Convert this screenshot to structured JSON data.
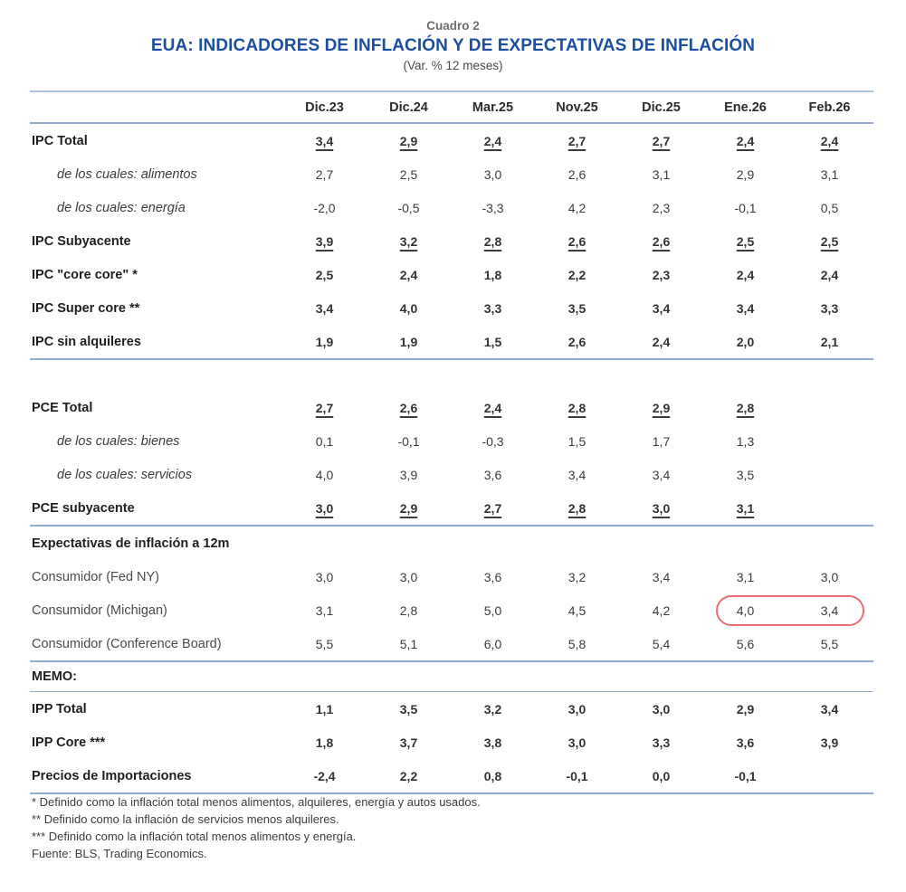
{
  "header": {
    "kicker": "Cuadro 2",
    "title": "EUA: INDICADORES DE INFLACIÓN Y DE EXPECTATIVAS DE INFLACIÓN",
    "subtitle": "(Var. % 12 meses)"
  },
  "table": {
    "columns": [
      "Dic.23",
      "Dic.24",
      "Mar.25",
      "Nov.25",
      "Dic.25",
      "Ene.26",
      "Feb.26"
    ],
    "rows": [
      {
        "label": "IPC Total",
        "style": "bold-underline",
        "values": [
          "3,4",
          "2,9",
          "2,4",
          "2,7",
          "2,7",
          "2,4",
          "2,4"
        ]
      },
      {
        "label": "de los cuales: alimentos",
        "style": "italic",
        "values": [
          "2,7",
          "2,5",
          "3,0",
          "2,6",
          "3,1",
          "2,9",
          "3,1"
        ]
      },
      {
        "label": "de los cuales: energía",
        "style": "italic",
        "values": [
          "-2,0",
          "-0,5",
          "-3,3",
          "4,2",
          "2,3",
          "-0,1",
          "0,5"
        ]
      },
      {
        "label": "IPC Subyacente",
        "style": "bold-underline",
        "values": [
          "3,9",
          "3,2",
          "2,8",
          "2,6",
          "2,6",
          "2,5",
          "2,5"
        ]
      },
      {
        "label": "IPC \"core core\" *",
        "style": "bold",
        "values": [
          "2,5",
          "2,4",
          "1,8",
          "2,2",
          "2,3",
          "2,4",
          "2,4"
        ]
      },
      {
        "label": "IPC Super core **",
        "style": "bold",
        "values": [
          "3,4",
          "4,0",
          "3,3",
          "3,5",
          "3,4",
          "3,4",
          "3,3"
        ]
      },
      {
        "label": "IPC sin alquileres",
        "style": "bold",
        "values": [
          "1,9",
          "1,9",
          "1,5",
          "2,6",
          "2,4",
          "2,0",
          "2,1"
        ],
        "rule": "thick"
      },
      {
        "label": "",
        "style": "spacer",
        "values": []
      },
      {
        "label": "PCE Total",
        "style": "bold-underline",
        "values": [
          "2,7",
          "2,6",
          "2,4",
          "2,8",
          "2,9",
          "2,8",
          ""
        ]
      },
      {
        "label": "de los cuales: bienes",
        "style": "italic",
        "values": [
          "0,1",
          "-0,1",
          "-0,3",
          "1,5",
          "1,7",
          "1,3",
          ""
        ]
      },
      {
        "label": "de los cuales: servicios",
        "style": "italic",
        "values": [
          "4,0",
          "3,9",
          "3,6",
          "3,4",
          "3,4",
          "3,5",
          ""
        ]
      },
      {
        "label": "PCE subyacente",
        "style": "bold-underline",
        "values": [
          "3,0",
          "2,9",
          "2,7",
          "2,8",
          "3,0",
          "3,1",
          ""
        ],
        "rule": "thick"
      },
      {
        "label": "Expectativas de inflación a 12m",
        "style": "bold",
        "values": []
      },
      {
        "label": "Consumidor (Fed NY)",
        "style": "regular",
        "values": [
          "3,0",
          "3,0",
          "3,6",
          "3,2",
          "3,4",
          "3,1",
          "3,0"
        ]
      },
      {
        "label": "Consumidor (Michigan)",
        "style": "regular",
        "values": [
          "3,1",
          "2,8",
          "5,0",
          "4,5",
          "4,2",
          "4,0",
          "3,4"
        ],
        "highlight": [
          5,
          6
        ]
      },
      {
        "label": "Consumidor (Conference Board)",
        "style": "regular",
        "values": [
          "5,5",
          "5,1",
          "6,0",
          "5,8",
          "5,4",
          "5,6",
          "5,5"
        ],
        "rule": "thick"
      },
      {
        "label": "MEMO:",
        "style": "bold memo",
        "values": [],
        "rule": "thin"
      },
      {
        "label": "IPP Total",
        "style": "bold",
        "values": [
          "1,1",
          "3,5",
          "3,2",
          "3,0",
          "3,0",
          "2,9",
          "3,4"
        ]
      },
      {
        "label": "IPP Core ***",
        "style": "bold",
        "values": [
          "1,8",
          "3,7",
          "3,8",
          "3,0",
          "3,3",
          "3,6",
          "3,9"
        ]
      },
      {
        "label": "Precios de Importaciones",
        "style": "bold",
        "values": [
          "-2,4",
          "2,2",
          "0,8",
          "-0,1",
          "0,0",
          "-0,1",
          ""
        ],
        "rule": "thick"
      }
    ]
  },
  "annotations": {
    "michigan_highlight": {
      "row": "Consumidor (Michigan)",
      "columns": [
        "Ene.26",
        "Feb.26"
      ],
      "values": [
        "4,0",
        "3,4"
      ],
      "color": "#ee6a73"
    }
  },
  "footnotes": [
    "* Definido como la inflación total menos alimentos, alquileres, energía y autos usados.",
    "** Definido como la inflación de servicios menos alquileres.",
    "*** Definido como la inflación total menos alimentos y energía.",
    "Fuente: BLS, Trading Economics."
  ],
  "colors": {
    "title_blue": "#1d4fa1",
    "rule_blue": "#8fabcf",
    "rule_blue_light": "#aec4dd",
    "highlight_red": "#ee6a73"
  }
}
